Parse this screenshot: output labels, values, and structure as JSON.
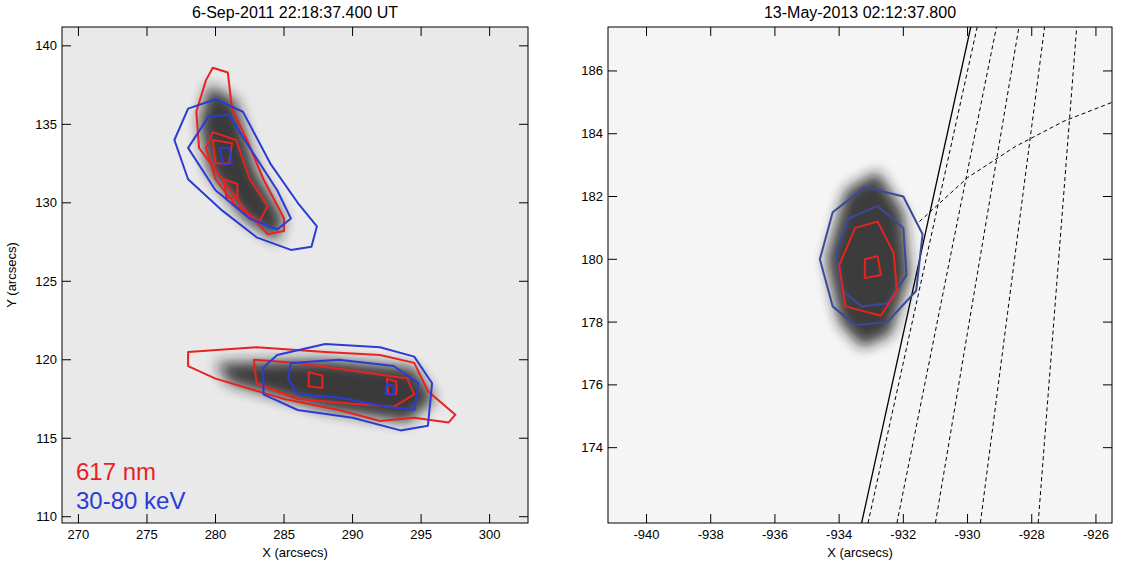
{
  "chart_data": [
    {
      "type": "contour",
      "title": "6-Sep-2011 22:18:37.400 UT",
      "x_label": "X (arcsecs)",
      "y_label": "Y (arcsecs)",
      "xlim": [
        268.8,
        302.8
      ],
      "ylim": [
        109.6,
        141.2
      ],
      "xticks": [
        270,
        275,
        280,
        285,
        290,
        295,
        300
      ],
      "yticks": [
        110,
        115,
        120,
        125,
        130,
        135,
        140
      ],
      "legend": "lower left",
      "series": [
        {
          "type": "image",
          "color": "#1c1c1c",
          "paths": [
            {
              "x": [
                279.5,
                281.5,
                283,
                285,
                284.5,
                282,
                279.5,
                278.8
              ],
              "y": [
                137.5,
                136.5,
                132,
                129,
                127.5,
                129,
                132,
                135
              ]
            },
            {
              "x": [
                280,
                288,
                294.5,
                296,
                294,
                288,
                281
              ],
              "y": [
                119.8,
                120,
                119.5,
                117.5,
                116,
                116.8,
                118.5
              ]
            }
          ]
        },
        {
          "name": "617 nm",
          "type": "contour",
          "color": "#e8231f",
          "paths": [
            {
              "x": [
                279.8,
                280.9,
                281.2,
                282.3,
                283.5,
                285,
                285,
                283.8,
                282.2,
                280.5,
                278.8,
                278.6,
                279.3
              ],
              "y": [
                138.6,
                138.3,
                136,
                134,
                131.5,
                129,
                128.2,
                128,
                129.5,
                131.5,
                133.5,
                135.8,
                137.8
              ]
            },
            {
              "x": [
                279.8,
                281.5,
                282.5,
                283.8,
                283.2,
                281.5,
                280,
                279.3
              ],
              "y": [
                134.5,
                134,
                131.5,
                129.8,
                128.8,
                129.8,
                131.5,
                133.5
              ]
            },
            {
              "x": [
                279.8,
                281.2,
                281,
                280
              ],
              "y": [
                134,
                133.8,
                132.5,
                132.5
              ]
            },
            {
              "x": [
                280.6,
                281.6,
                281.6,
                280.8
              ],
              "y": [
                131.5,
                131.2,
                130.3,
                130.3
              ]
            },
            {
              "x": [
                278,
                283,
                288,
                292,
                294.5,
                295.5,
                297.5,
                297,
                294.5,
                292,
                289,
                285,
                280,
                278
              ],
              "y": [
                120.5,
                120.8,
                120.5,
                120.3,
                119.8,
                118,
                116.5,
                116,
                116.3,
                116.1,
                116.8,
                117.5,
                118.8,
                119.6
              ]
            },
            {
              "x": [
                282.8,
                286,
                290,
                294,
                294.5,
                293,
                290,
                286,
                283
              ],
              "y": [
                120,
                119.8,
                119.3,
                118.8,
                117.8,
                117,
                117.2,
                117.5,
                118.5
              ]
            },
            {
              "x": [
                286.8,
                287.8,
                287.8,
                286.8
              ],
              "y": [
                119.2,
                119,
                118.2,
                118.3
              ]
            },
            {
              "x": [
                292.5,
                293.2,
                293.2,
                292.6
              ],
              "y": [
                118.8,
                118.6,
                117.8,
                117.8
              ]
            }
          ]
        },
        {
          "name": "30-80 keV",
          "type": "contour",
          "color": "#2a3bd6",
          "paths": [
            {
              "x": [
                277,
                278,
                280,
                282,
                284,
                286,
                287.4,
                287,
                285.5,
                283,
                280.5,
                278
              ],
              "y": [
                134,
                136,
                136.6,
                135.8,
                132.5,
                130,
                128.5,
                127.2,
                127,
                127.8,
                129.5,
                131.5
              ]
            },
            {
              "x": [
                278,
                279.5,
                281,
                282.5,
                284.5,
                285.5,
                284.5,
                282.5,
                280
              ],
              "y": [
                133.5,
                135.5,
                135.6,
                133.5,
                130.8,
                129,
                128.3,
                129,
                130.8
              ]
            },
            {
              "x": [
                280.3,
                281,
                281.2,
                280.6
              ],
              "y": [
                133.5,
                133.5,
                132.5,
                132.4
              ]
            },
            {
              "x": [
                284.5,
                288,
                292,
                294.5,
                295.8,
                295.5,
                293.5,
                290,
                286,
                283.5,
                283.5
              ],
              "y": [
                120.3,
                121,
                120.8,
                120.2,
                118.5,
                115.8,
                115.5,
                116.3,
                116.8,
                117.8,
                119.5
              ]
            },
            {
              "x": [
                285.5,
                289,
                293,
                294.8,
                294.5,
                292.5,
                289,
                286,
                285.3
              ],
              "y": [
                119.8,
                120,
                119.6,
                118.5,
                116.8,
                117,
                117.6,
                117.8,
                118.8
              ]
            },
            {
              "x": [
                292.5,
                293,
                293,
                292.4
              ],
              "y": [
                118.5,
                118.3,
                117.8,
                117.8
              ]
            }
          ]
        }
      ]
    },
    {
      "type": "contour",
      "title": "13-May-2013 02:12:37.800",
      "x_label": "X (arcsecs)",
      "xlim": [
        -941.2,
        -925.5
      ],
      "ylim": [
        171.6,
        187.4
      ],
      "xticks": [
        -940,
        -938,
        -936,
        -934,
        -932,
        -930,
        -928,
        -926
      ],
      "yticks": [
        174,
        176,
        178,
        180,
        182,
        184,
        186
      ],
      "series": [
        {
          "type": "image",
          "color": "#1c1c1c",
          "paths": [
            {
              "x": [
                -934,
                -934.4,
                -933.8,
                -932.8,
                -932,
                -931.8,
                -932.4,
                -933.3
              ],
              "y": [
                178,
                180,
                182.2,
                182.8,
                181.5,
                179.5,
                177.6,
                177.2
              ]
            }
          ]
        },
        {
          "type": "line",
          "color": "#000000",
          "line_style": "solid",
          "paths": [
            {
              "x": [
                -933.3,
                -929.9
              ],
              "y": [
                171.6,
                187.4
              ]
            }
          ]
        },
        {
          "type": "line",
          "color": "#000000",
          "line_style": "dashed",
          "paths": [
            {
              "x": [
                -933.1,
                -929.7
              ],
              "y": [
                171.6,
                187.4
              ]
            },
            {
              "x": [
                -932.2,
                -929.1
              ],
              "y": [
                171.6,
                187.4
              ]
            },
            {
              "x": [
                -931,
                -928.4
              ],
              "y": [
                171.6,
                187.4
              ]
            },
            {
              "x": [
                -929.6,
                -927.6
              ],
              "y": [
                171.6,
                187.4
              ]
            },
            {
              "x": [
                -927.8,
                -926.6
              ],
              "y": [
                171.6,
                187.4
              ]
            },
            {
              "x": [
                -931.5,
                -930,
                -928.5,
                -927,
                -925.5
              ],
              "y": [
                181.2,
                182.6,
                183.6,
                184.4,
                185
              ]
            }
          ]
        },
        {
          "type": "contour",
          "color": "#3a4a9a",
          "paths": [
            {
              "x": [
                -934.2,
                -934.6,
                -934.2,
                -933.2,
                -932,
                -931.4,
                -931.6,
                -932.5,
                -933.5
              ],
              "y": [
                178.5,
                180,
                181.5,
                182.3,
                182,
                180.8,
                179,
                178,
                177.9
              ]
            },
            {
              "x": [
                -933.9,
                -934.1,
                -933.7,
                -932.8,
                -932,
                -931.9,
                -932.5,
                -933.3
              ],
              "y": [
                179,
                180.2,
                181.3,
                181.7,
                181,
                179.5,
                178.6,
                178.5
              ]
            }
          ]
        },
        {
          "type": "contour",
          "color": "#e8231f",
          "paths": [
            {
              "x": [
                -933.8,
                -934,
                -933.5,
                -932.8,
                -932.3,
                -932.2,
                -932.7
              ],
              "y": [
                178.5,
                179.8,
                181,
                181.2,
                180.2,
                179,
                178.2
              ]
            },
            {
              "x": [
                -933.2,
                -933.2,
                -932.8,
                -932.7
              ],
              "y": [
                179.4,
                180,
                180.1,
                179.5
              ]
            }
          ]
        }
      ]
    }
  ]
}
